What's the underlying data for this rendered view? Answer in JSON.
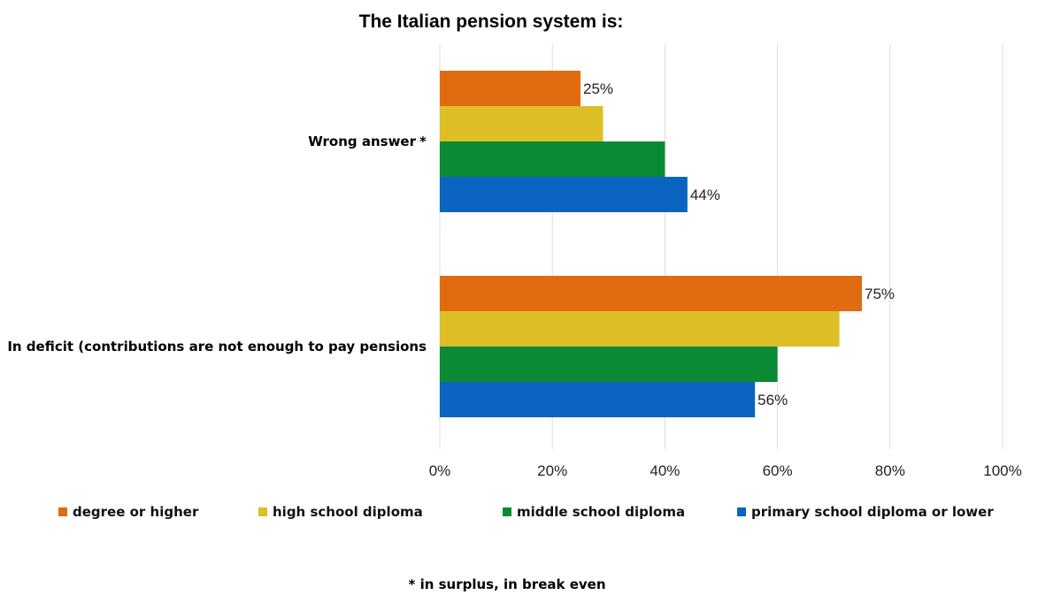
{
  "chart_data": {
    "type": "bar",
    "orientation": "horizontal",
    "title": "The Italian pension system is:",
    "categories": [
      "Wrong answer",
      "In deficit (contributions are not enough to pay pensions"
    ],
    "category_markers": [
      "*",
      ""
    ],
    "series": [
      {
        "name": "degree or higher",
        "color": "#E06B10",
        "values": [
          25,
          75
        ],
        "labels": [
          "25%",
          "75%"
        ]
      },
      {
        "name": "high school diploma",
        "color": "#DDBE26",
        "values": [
          29,
          71
        ],
        "labels": [
          "",
          ""
        ]
      },
      {
        "name": "middle school diploma",
        "color": "#0A8A32",
        "values": [
          40,
          60
        ],
        "labels": [
          "",
          ""
        ]
      },
      {
        "name": "primary school diploma or lower",
        "color": "#0A64C0",
        "values": [
          44,
          56
        ],
        "labels": [
          "44%",
          "56%"
        ]
      }
    ],
    "xlim": [
      0,
      100
    ],
    "x_ticks": [
      "0%",
      "20%",
      "40%",
      "60%",
      "80%",
      "100%"
    ],
    "grid": true,
    "legend_position": "bottom",
    "footnote": "* in surplus, in break even"
  }
}
